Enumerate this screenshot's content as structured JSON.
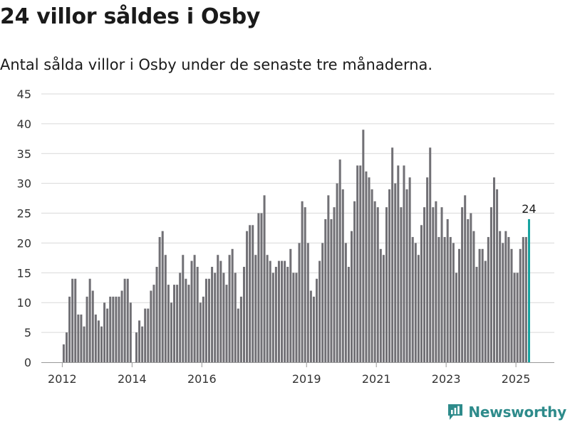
{
  "header": {
    "title": "24 villor såldes i Osby",
    "subtitle": "Antal sålda villor i Osby under de senaste tre månaderna."
  },
  "brand": {
    "name": "Newsworthy",
    "icon": "newsworthy-logo-icon",
    "color": "#2e8b8b"
  },
  "colors": {
    "bar": "#717075",
    "highlight": "#17a3a0",
    "grid": "#d9d9d9",
    "axis": "#999999"
  },
  "chart_data": {
    "type": "bar",
    "title": "24 villor såldes i Osby",
    "subtitle": "Antal sålda villor i Osby under de senaste tre månaderna.",
    "xlabel": "",
    "ylabel": "",
    "ylim": [
      0,
      45
    ],
    "yticks": [
      0,
      5,
      10,
      15,
      20,
      25,
      30,
      35,
      40,
      45
    ],
    "xlim": [
      2011.4,
      2026.1
    ],
    "xticks": [
      {
        "label": "2012",
        "value": 2012
      },
      {
        "label": "2014",
        "value": 2014
      },
      {
        "label": "2016",
        "value": 2016
      },
      {
        "label": "2019",
        "value": 2019
      },
      {
        "label": "2021",
        "value": 2021
      },
      {
        "label": "2023",
        "value": 2023
      },
      {
        "label": "2025",
        "value": 2025
      }
    ],
    "grid": true,
    "legend": "none",
    "start": "2012-01",
    "highlight_last": true,
    "last_value_label": "24",
    "values": [
      3,
      5,
      11,
      14,
      14,
      8,
      8,
      6,
      11,
      14,
      12,
      8,
      7,
      6,
      10,
      9,
      11,
      11,
      11,
      11,
      12,
      14,
      14,
      10,
      null,
      5,
      7,
      6,
      9,
      9,
      12,
      13,
      16,
      21,
      22,
      18,
      13,
      10,
      13,
      13,
      15,
      18,
      14,
      13,
      17,
      18,
      16,
      10,
      11,
      14,
      14,
      16,
      15,
      18,
      17,
      15,
      13,
      18,
      19,
      15,
      9,
      11,
      16,
      22,
      23,
      23,
      18,
      25,
      25,
      28,
      18,
      17,
      15,
      16,
      17,
      17,
      17,
      16,
      19,
      15,
      15,
      20,
      27,
      26,
      20,
      12,
      11,
      14,
      17,
      20,
      24,
      28,
      24,
      26,
      30,
      34,
      29,
      20,
      16,
      22,
      27,
      33,
      33,
      39,
      32,
      31,
      29,
      27,
      26,
      19,
      18,
      26,
      29,
      36,
      30,
      33,
      26,
      33,
      29,
      31,
      21,
      20,
      18,
      23,
      26,
      31,
      36,
      26,
      27,
      21,
      26,
      21,
      24,
      21,
      20,
      15,
      19,
      26,
      28,
      24,
      25,
      22,
      16,
      19,
      19,
      17,
      21,
      26,
      31,
      29,
      22,
      20,
      22,
      21,
      19,
      15,
      15,
      19,
      21,
      21,
      24
    ]
  }
}
